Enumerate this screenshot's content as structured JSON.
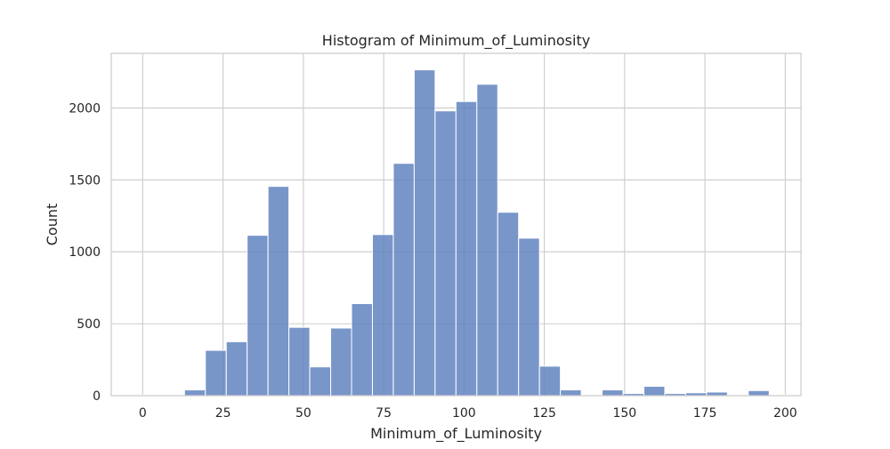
{
  "chart_data": {
    "type": "bar",
    "title": "Histogram of Minimum_of_Luminosity",
    "xlabel": "Minimum_of_Luminosity",
    "ylabel": "Count",
    "xlim": [
      -9.8,
      204.9
    ],
    "ylim": [
      0,
      2380
    ],
    "xticks": [
      0,
      25,
      50,
      75,
      100,
      125,
      150,
      175,
      200
    ],
    "yticks": [
      0,
      500,
      1000,
      1500,
      2000
    ],
    "grid": true,
    "bar_color": "#4c72b0",
    "bins": [
      {
        "x0": 0.0,
        "x1": 6.5,
        "count": 5
      },
      {
        "x0": 6.5,
        "x1": 13.0,
        "count": 5
      },
      {
        "x0": 13.0,
        "x1": 19.5,
        "count": 40
      },
      {
        "x0": 19.5,
        "x1": 26.0,
        "count": 315
      },
      {
        "x0": 26.0,
        "x1": 32.5,
        "count": 375
      },
      {
        "x0": 32.5,
        "x1": 39.0,
        "count": 1115
      },
      {
        "x0": 39.0,
        "x1": 45.5,
        "count": 1455
      },
      {
        "x0": 45.5,
        "x1": 52.0,
        "count": 475
      },
      {
        "x0": 52.0,
        "x1": 58.5,
        "count": 200
      },
      {
        "x0": 58.5,
        "x1": 65.0,
        "count": 470
      },
      {
        "x0": 65.0,
        "x1": 71.5,
        "count": 640
      },
      {
        "x0": 71.5,
        "x1": 78.0,
        "count": 1120
      },
      {
        "x0": 78.0,
        "x1": 84.5,
        "count": 1615
      },
      {
        "x0": 84.5,
        "x1": 91.0,
        "count": 2265
      },
      {
        "x0": 91.0,
        "x1": 97.5,
        "count": 1980
      },
      {
        "x0": 97.5,
        "x1": 104.0,
        "count": 2045
      },
      {
        "x0": 104.0,
        "x1": 110.5,
        "count": 2165
      },
      {
        "x0": 110.5,
        "x1": 117.0,
        "count": 1275
      },
      {
        "x0": 117.0,
        "x1": 123.5,
        "count": 1095
      },
      {
        "x0": 123.5,
        "x1": 130.0,
        "count": 205
      },
      {
        "x0": 130.0,
        "x1": 136.5,
        "count": 40
      },
      {
        "x0": 136.5,
        "x1": 143.0,
        "count": 5
      },
      {
        "x0": 143.0,
        "x1": 149.5,
        "count": 40
      },
      {
        "x0": 149.5,
        "x1": 156.0,
        "count": 15
      },
      {
        "x0": 156.0,
        "x1": 162.5,
        "count": 65
      },
      {
        "x0": 162.5,
        "x1": 169.0,
        "count": 15
      },
      {
        "x0": 169.0,
        "x1": 175.5,
        "count": 20
      },
      {
        "x0": 175.5,
        "x1": 182.0,
        "count": 25
      },
      {
        "x0": 182.0,
        "x1": 188.5,
        "count": 5
      },
      {
        "x0": 188.5,
        "x1": 195.0,
        "count": 35
      },
      {
        "x0": 195.0,
        "x1": 201.5,
        "count": 5
      }
    ]
  }
}
